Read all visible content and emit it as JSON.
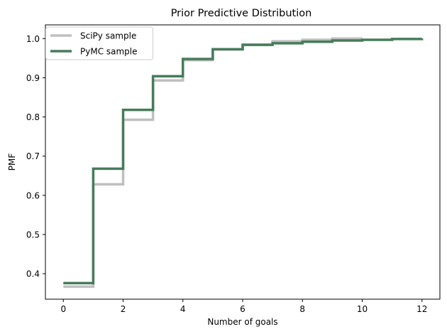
{
  "chart_data": {
    "type": "line",
    "title": "Prior Predictive Distribution",
    "xlabel": "Number of goals",
    "ylabel": "PMF",
    "xlim": [
      -0.6,
      12.6
    ],
    "ylim": [
      0.335,
      1.035
    ],
    "xticks": [
      0,
      2,
      4,
      6,
      8,
      10,
      12
    ],
    "yticks": [
      0.4,
      0.5,
      0.6,
      0.7,
      0.8,
      0.9,
      1.0
    ],
    "ytick_labels": [
      "0.4",
      "0.5",
      "0.6",
      "0.7",
      "0.8",
      "0.9",
      "1.0"
    ],
    "grid": false,
    "legend_position": "upper-left",
    "step_style": "post",
    "series": [
      {
        "name": "SciPy sample",
        "color": "#bfbfbf",
        "x": [
          0,
          1,
          2,
          3,
          4,
          5,
          6,
          7,
          8,
          9,
          10
        ],
        "y": [
          0.367,
          0.628,
          0.793,
          0.893,
          0.945,
          0.972,
          0.985,
          0.993,
          0.997,
          1.0,
          1.0
        ]
      },
      {
        "name": "PyMC sample",
        "color": "#467c5a",
        "x": [
          0,
          1,
          2,
          3,
          4,
          5,
          6,
          7,
          8,
          9,
          10,
          11,
          12
        ],
        "y": [
          0.376,
          0.668,
          0.818,
          0.904,
          0.948,
          0.973,
          0.984,
          0.988,
          0.992,
          0.995,
          0.997,
          0.999,
          1.0
        ]
      }
    ]
  }
}
